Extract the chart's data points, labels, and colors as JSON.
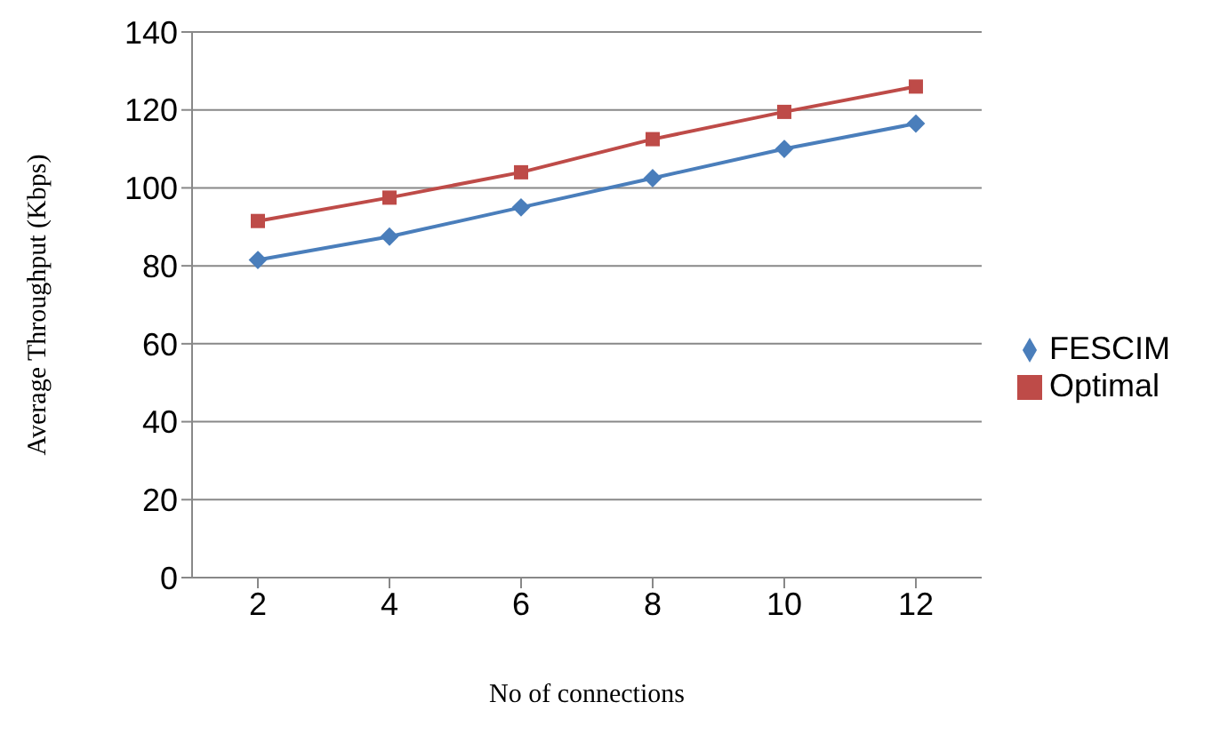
{
  "chart_data": {
    "type": "line",
    "xlabel": "No of connections",
    "ylabel": "Average Throughput (Kbps)",
    "categories": [
      "2",
      "4",
      "6",
      "8",
      "10",
      "12"
    ],
    "series": [
      {
        "name": "FESCIM",
        "color": "#4a7ebb",
        "marker": "diamond",
        "values": [
          81.5,
          87.5,
          95,
          102.5,
          110,
          116.5
        ]
      },
      {
        "name": "Optimal",
        "color": "#be4b48",
        "marker": "square",
        "values": [
          91.5,
          97.5,
          104,
          112.5,
          119.5,
          126
        ]
      }
    ],
    "ylim": [
      0,
      140
    ],
    "yticks": [
      0,
      20,
      40,
      60,
      80,
      100,
      120,
      140
    ],
    "grid": "y",
    "legend": "right"
  }
}
